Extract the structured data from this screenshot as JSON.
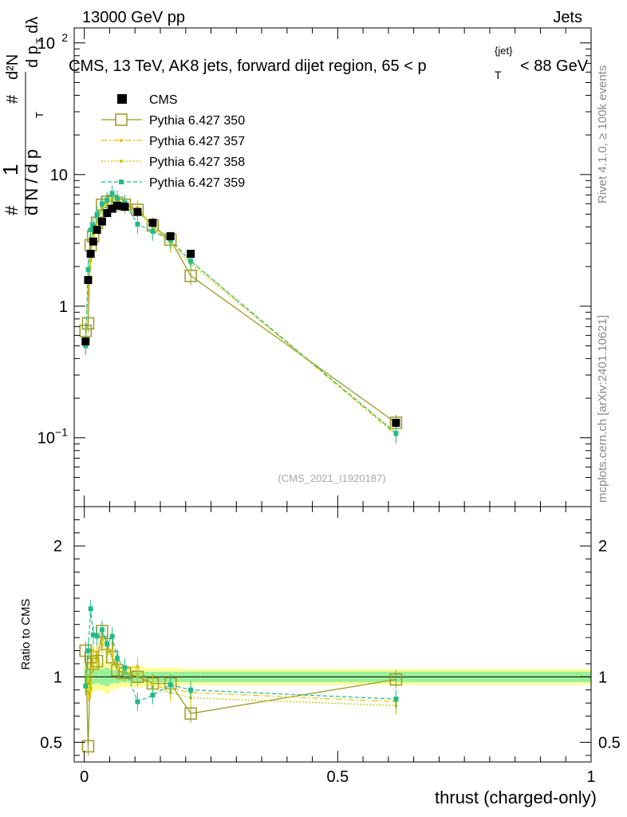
{
  "header": {
    "left": "13000 GeV pp",
    "right": "Jets",
    "title": "CMS, 13 TeV, AK8 jets, forward dijet region, 65 < p",
    "title_sub": "T",
    "title_sup": "{jet}",
    "title_tail": "< 88 GeV",
    "right_label_top": "Rivet 4.1.0, ≥ 100k events",
    "right_label_bottom": "mcplots.cern.ch [arXiv:2401.10621]",
    "watermark": "(CMS_2021_I1920187)"
  },
  "colors": {
    "cms": "#000000",
    "p350": "#9a9a2a",
    "p357": "#e8c000",
    "p358": "#c8c800",
    "p359": "#22bb88",
    "band_inner": "#98f098",
    "band_outer": "#ffff99"
  },
  "chart_data": {
    "type": "line",
    "x_label": "thrust (charged-only)",
    "y_label_main": "1/dN/dp_T  d²N/dp_T dλ",
    "y_label_ratio": "Ratio to CMS",
    "xlim": [
      -0.02,
      1.0
    ],
    "ylim_main": [
      0.03,
      130
    ],
    "ylim_ratio": [
      0.35,
      2.3
    ],
    "x_ticks": [
      "0",
      "0.5",
      "1"
    ],
    "y_ticks_main": [
      "10^-1",
      "1",
      "10",
      "10^2"
    ],
    "y_ticks_ratio": [
      "0.5",
      "1",
      "2"
    ],
    "x": [
      0.0025,
      0.0075,
      0.0125,
      0.0175,
      0.025,
      0.035,
      0.045,
      0.055,
      0.065,
      0.08,
      0.105,
      0.135,
      0.17,
      0.21,
      0.615
    ],
    "series": [
      {
        "name": "CMS",
        "style": "marker",
        "values": [
          0.54,
          1.58,
          2.5,
          3.1,
          3.8,
          4.4,
          5.1,
          5.5,
          5.8,
          5.7,
          5.2,
          4.3,
          3.4,
          2.5,
          0.13
        ]
      },
      {
        "name": "Pythia 6.427 350",
        "style": "solid-open-square",
        "values": [
          0.65,
          0.74,
          2.9,
          3.4,
          4.3,
          5.9,
          6.2,
          6.3,
          6.1,
          5.9,
          5.4,
          4.1,
          3.2,
          1.7,
          0.13
        ]
      },
      {
        "name": "Pythia 6.427 357",
        "style": "dashdot",
        "values": [
          0.5,
          1.4,
          2.2,
          3.6,
          4.5,
          5.7,
          6.2,
          6.6,
          6.5,
          6.0,
          5.6,
          4.0,
          3.1,
          2.2,
          0.105
        ]
      },
      {
        "name": "Pythia 6.427 358",
        "style": "dotted",
        "values": [
          0.55,
          1.5,
          2.3,
          3.5,
          4.4,
          5.5,
          6.0,
          6.4,
          6.3,
          5.9,
          5.3,
          3.9,
          3.0,
          2.1,
          0.11
        ]
      },
      {
        "name": "Pythia 6.427 359",
        "style": "dashed",
        "values": [
          0.5,
          1.9,
          3.8,
          4.1,
          5.0,
          6.0,
          6.4,
          7.2,
          6.6,
          6.1,
          4.2,
          3.7,
          3.2,
          2.2,
          0.108
        ]
      }
    ],
    "ratio_series": [
      {
        "name": "Pythia 6.427 350",
        "values": [
          1.2,
          0.47,
          1.15,
          1.1,
          1.12,
          1.35,
          1.25,
          1.15,
          1.05,
          1.03,
          1.0,
          0.95,
          0.95,
          0.72,
          0.98
        ]
      },
      {
        "name": "Pythia 6.427 357",
        "values": [
          0.93,
          0.88,
          0.9,
          1.2,
          1.18,
          1.3,
          1.21,
          1.2,
          1.12,
          1.05,
          1.08,
          0.93,
          0.91,
          0.88,
          0.81
        ]
      },
      {
        "name": "Pythia 6.427 358",
        "values": [
          1.0,
          0.95,
          0.92,
          1.15,
          1.12,
          1.25,
          1.18,
          1.16,
          1.09,
          1.03,
          1.02,
          0.91,
          0.88,
          0.84,
          0.78
        ]
      },
      {
        "name": "Pythia 6.427 359",
        "values": [
          0.93,
          1.2,
          1.52,
          1.32,
          1.31,
          1.36,
          1.25,
          1.31,
          1.14,
          1.07,
          0.81,
          0.86,
          0.94,
          0.9,
          0.83
        ]
      }
    ]
  }
}
